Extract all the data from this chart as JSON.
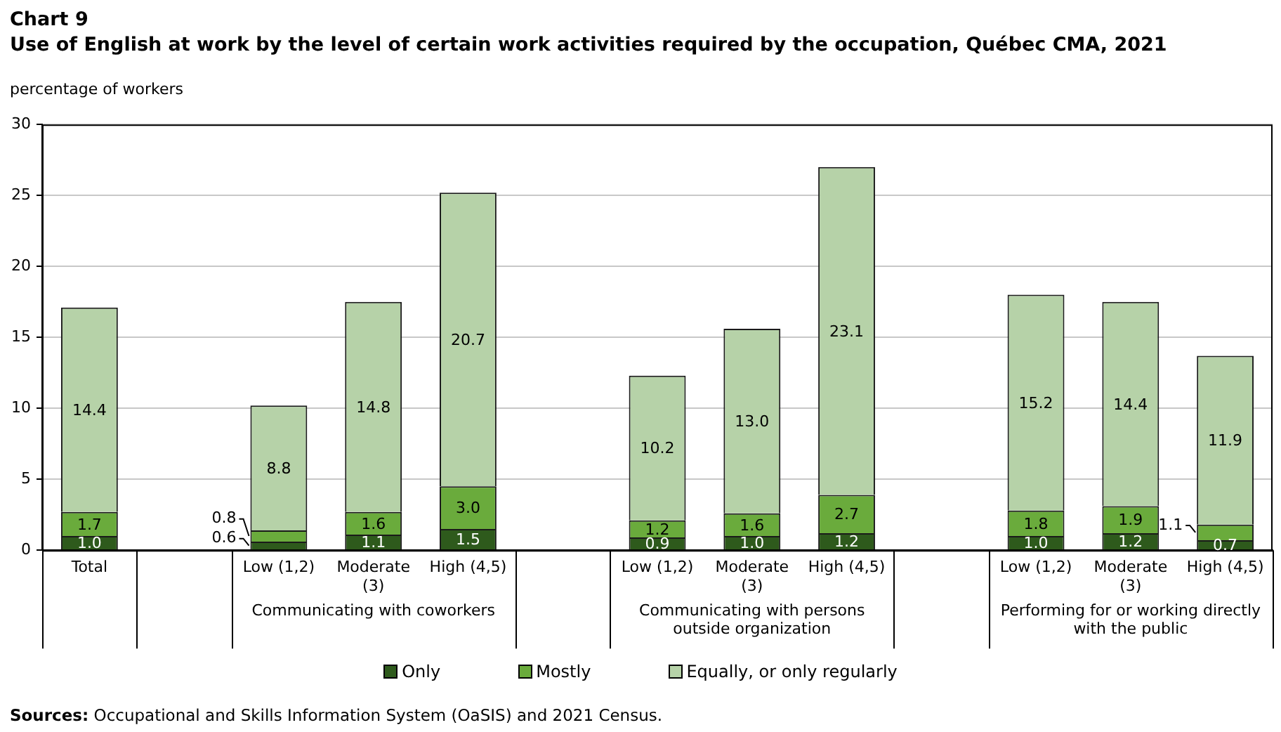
{
  "chart_data": {
    "type": "bar",
    "stacked": true,
    "title": "Chart 9",
    "subtitle": "Use of English at work by the level of certain work activities required by the occupation, Québec CMA, 2021",
    "ylabel": "percentage of workers",
    "categories": [
      "Total",
      null,
      "Low (1,2)",
      "Moderate (3)",
      "High (4,5)",
      null,
      "Low (1,2)",
      "Moderate (3)",
      "High (4,5)",
      null,
      "Low (1,2)",
      "Moderate (3)",
      "High (4,5)"
    ],
    "series": [
      {
        "name": "Only",
        "color": "#2e5a1c",
        "values": [
          1.0,
          null,
          0.6,
          1.1,
          1.5,
          null,
          0.9,
          1.0,
          1.2,
          null,
          1.0,
          1.2,
          0.7
        ],
        "value_labels": [
          "1.0",
          null,
          "0.6",
          "1.1",
          "1.5",
          null,
          "0.9",
          "1.0",
          "1.2",
          null,
          "1.0",
          "1.2",
          "0.7"
        ]
      },
      {
        "name": "Mostly",
        "color": "#6aab3c",
        "values": [
          1.7,
          null,
          0.8,
          1.6,
          3.0,
          null,
          1.2,
          1.6,
          2.7,
          null,
          1.8,
          1.9,
          1.1
        ],
        "value_labels": [
          "1.7",
          null,
          "0.8",
          "1.6",
          "3.0",
          null,
          "1.2",
          "1.6",
          "2.7",
          null,
          "1.8",
          "1.9",
          "1.1"
        ]
      },
      {
        "name": "Equally, or only regularly",
        "color": "#b6d2a8",
        "values": [
          14.4,
          null,
          8.8,
          14.8,
          20.7,
          null,
          10.2,
          13.0,
          23.1,
          null,
          15.2,
          14.4,
          11.9
        ],
        "value_labels": [
          "14.4",
          null,
          "8.8",
          "14.8",
          "20.7",
          null,
          "10.2",
          "13.0",
          "23.1",
          null,
          "15.2",
          "14.4",
          "11.9"
        ]
      }
    ],
    "ylim": [
      0,
      30
    ],
    "yticks": [
      0,
      5,
      10,
      15,
      20,
      25,
      30
    ],
    "grid": "y",
    "legend": "bottom",
    "annotations": [
      "Communicating with coworkers",
      "Communicating with persons outside organization",
      "Performing for or working directly with the public",
      "Sources: Occupational and Skills Information System (OaSIS) and 2021 Census."
    ]
  }
}
